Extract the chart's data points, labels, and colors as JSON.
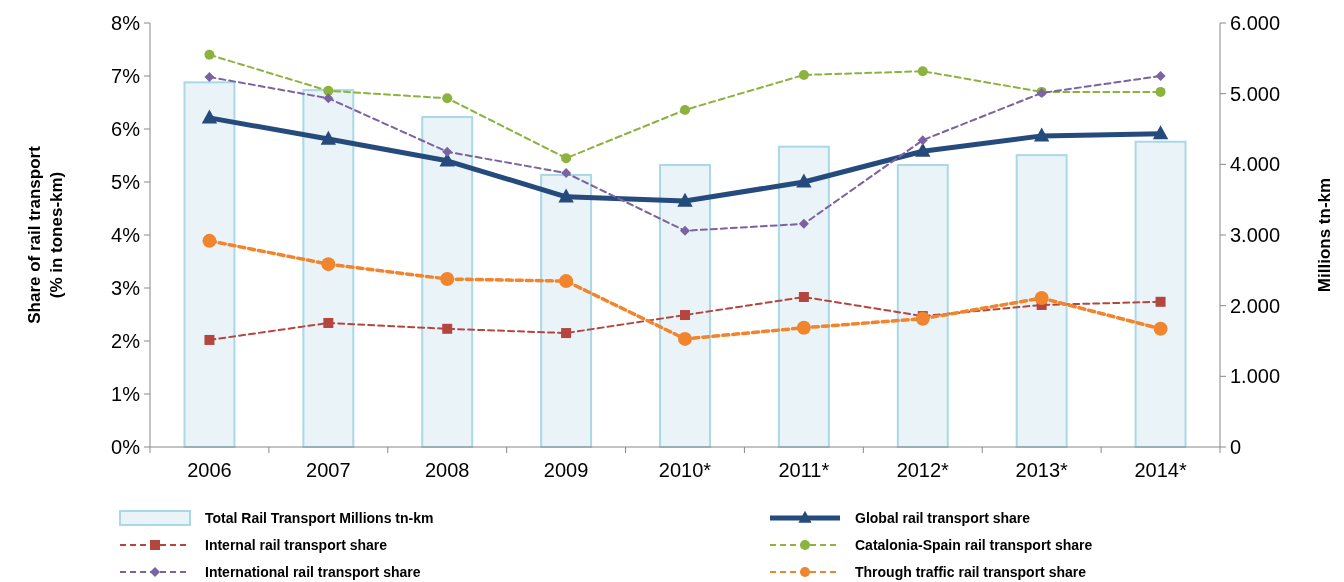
{
  "chart_data": {
    "type": "line",
    "categories": [
      "2006",
      "2007",
      "2008",
      "2009",
      "2010*",
      "2011*",
      "2012*",
      "2013*",
      "2014*"
    ],
    "ylabel": "Share of rail transport\n(% in tones-km)",
    "y2label": "Millions tn-km",
    "ylim": [
      0,
      8
    ],
    "yticks": [
      {
        "value": 0,
        "label": "0%"
      },
      {
        "value": 1,
        "label": "1%"
      },
      {
        "value": 2,
        "label": "2%"
      },
      {
        "value": 3,
        "label": "3%"
      },
      {
        "value": 4,
        "label": "4%"
      },
      {
        "value": 5,
        "label": "5%"
      },
      {
        "value": 6,
        "label": "6%"
      },
      {
        "value": 7,
        "label": "7%"
      },
      {
        "value": 8,
        "label": "8%"
      }
    ],
    "y2lim": [
      0,
      6000
    ],
    "y2ticks": [
      {
        "value": 0,
        "label": "0"
      },
      {
        "value": 1000,
        "label": "1.000"
      },
      {
        "value": 2000,
        "label": "2.000"
      },
      {
        "value": 3000,
        "label": "3.000"
      },
      {
        "value": 4000,
        "label": "4.000"
      },
      {
        "value": 5000,
        "label": "5.000"
      },
      {
        "value": 6000,
        "label": "6.000"
      }
    ],
    "legend": "bottom",
    "series": [
      {
        "name": "Total Rail Transport Millions tn-km",
        "type": "bar",
        "axis": "y2",
        "color": "#eaf4f8",
        "values": [
          5160,
          5050,
          4670,
          3850,
          3990,
          4250,
          3990,
          4130,
          4320
        ]
      },
      {
        "name": "Global rail transport share",
        "color": "#254a7c",
        "marker": "triangle",
        "line_style": "solid",
        "values": [
          6.21,
          5.81,
          5.4,
          4.72,
          4.64,
          5.0,
          5.58,
          5.87,
          5.91
        ]
      },
      {
        "name": "Internal rail transport share",
        "color": "#b5463f",
        "marker": "square",
        "line_style": "dashed",
        "values": [
          2.02,
          2.34,
          2.23,
          2.15,
          2.49,
          2.83,
          2.47,
          2.68,
          2.74
        ]
      },
      {
        "name": "Catalonia-Spain rail transport share",
        "color": "#8db33f",
        "marker": "circle",
        "line_style": "dashed",
        "values": [
          7.4,
          6.72,
          6.58,
          5.45,
          6.36,
          7.02,
          7.09,
          6.7,
          6.7
        ]
      },
      {
        "name": "International rail transport share",
        "color": "#7b62a0",
        "marker": "diamond",
        "line_style": "dashed",
        "values": [
          6.98,
          6.58,
          5.57,
          5.17,
          4.08,
          4.21,
          5.79,
          6.68,
          7.0
        ]
      },
      {
        "name": "Through traffic rail transport share",
        "color": "#f0852d",
        "marker": "circle",
        "line_style": "dashed",
        "values": [
          3.89,
          3.45,
          3.17,
          3.13,
          2.04,
          2.25,
          2.42,
          2.81,
          2.23
        ]
      }
    ]
  }
}
